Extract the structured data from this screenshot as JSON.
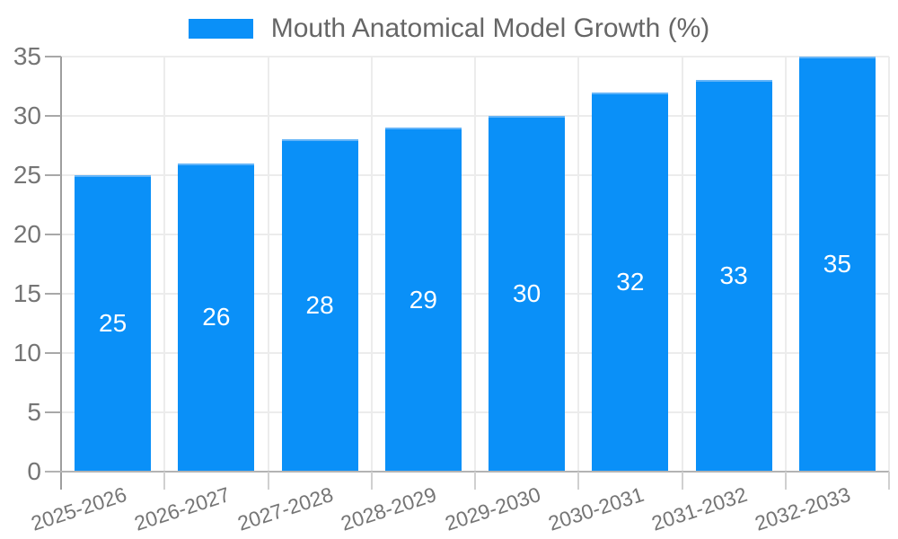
{
  "legend": {
    "label": "Mouth Anatomical Model Growth (%)"
  },
  "chart_data": {
    "type": "bar",
    "title": "Mouth Anatomical Model Growth (%)",
    "categories": [
      "2025-2026",
      "2026-2027",
      "2027-2028",
      "2028-2029",
      "2029-2030",
      "2030-2031",
      "2031-2032",
      "2032-2033"
    ],
    "values": [
      25,
      26,
      28,
      29,
      30,
      32,
      33,
      35
    ],
    "value_labels_position": "inside-center",
    "xlabel": "",
    "ylabel": "",
    "ylim": [
      0,
      35
    ],
    "yticks": [
      0,
      5,
      10,
      15,
      20,
      25,
      30,
      35
    ],
    "grid": true,
    "legend_position": "top-center",
    "x_label_rotation_deg": -18
  },
  "colors": {
    "bar": "#0a90f8",
    "bar_top_edge": "#63b4f8",
    "value_label": "#ffffff",
    "gridline": "#ececec",
    "y_axis_line": "#9e9e9e",
    "x_axis_line": "#b3b3b3",
    "y_tick": "#a8a8a8",
    "x_tick": "#d0d0d0",
    "tick_label": "#757575",
    "legend_text": "#666666",
    "background": "#ffffff"
  }
}
